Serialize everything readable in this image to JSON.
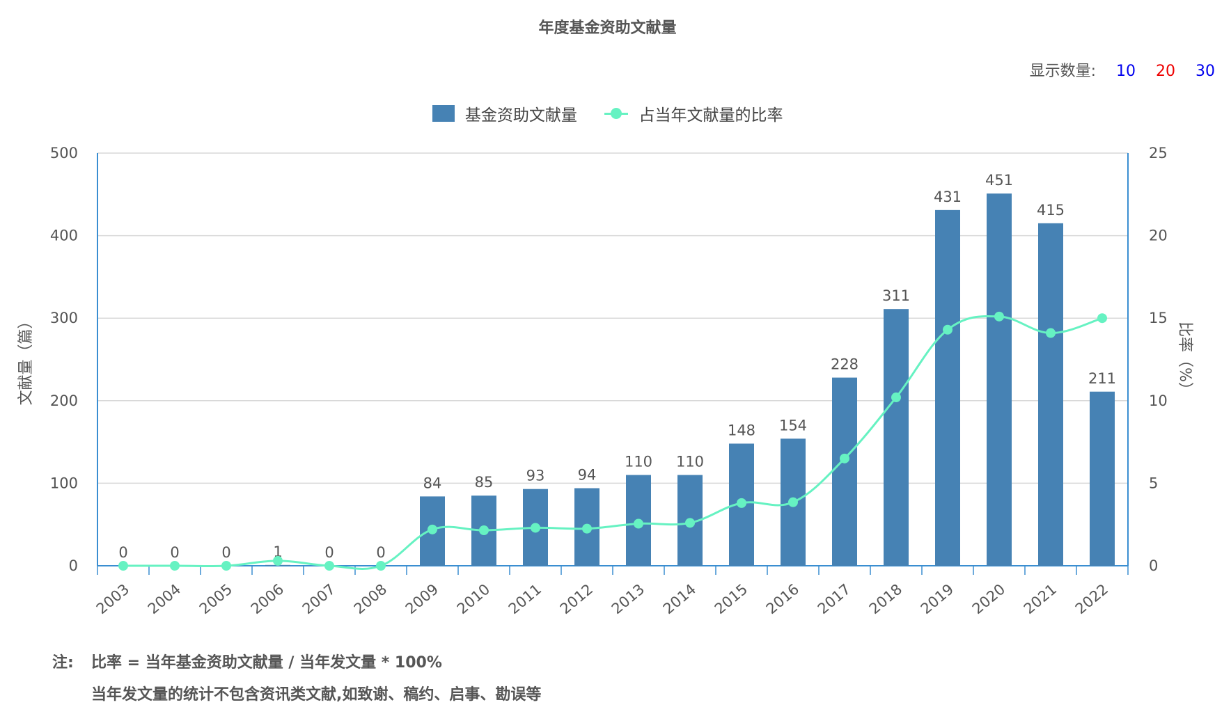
{
  "title": "年度基金资助文献量",
  "display_count": {
    "label": "显示数量:",
    "options": [
      {
        "label": "10",
        "color": "#0000ee"
      },
      {
        "label": "20",
        "color": "#ee0000"
      },
      {
        "label": "30",
        "color": "#0000ee"
      }
    ]
  },
  "legend": {
    "bar_label": "基金资助文献量",
    "line_label": "占当年文献量的比率"
  },
  "colors": {
    "bar": "#4682b4",
    "line": "#66f2c2",
    "grid": "#d9d9d9",
    "axis": "#3a8ed1",
    "text": "#555555"
  },
  "chart_data": {
    "type": "bar",
    "title": "年度基金资助文献量",
    "categories": [
      "2003",
      "2004",
      "2005",
      "2006",
      "2007",
      "2008",
      "2009",
      "2010",
      "2011",
      "2012",
      "2013",
      "2014",
      "2015",
      "2016",
      "2017",
      "2018",
      "2019",
      "2020",
      "2021",
      "2022"
    ],
    "series": [
      {
        "name": "基金资助文献量",
        "type": "bar",
        "axis": "left",
        "values": [
          0,
          0,
          0,
          1,
          0,
          0,
          84,
          85,
          93,
          94,
          110,
          110,
          148,
          154,
          228,
          311,
          431,
          451,
          415,
          211
        ]
      },
      {
        "name": "占当年文献量的比率",
        "type": "line",
        "axis": "right",
        "values": [
          0,
          0,
          0,
          0.3,
          0,
          0,
          2.2,
          2.15,
          2.3,
          2.25,
          2.55,
          2.6,
          3.8,
          3.85,
          6.5,
          10.2,
          14.3,
          15.1,
          14.1,
          15.0
        ]
      }
    ],
    "ylabel_left": "文献量（篇）",
    "ylabel_right": "比率（%）",
    "ylim_left": [
      0,
      500
    ],
    "ylim_right": [
      0,
      25
    ],
    "yticks_left": [
      "0",
      "100",
      "200",
      "300",
      "400",
      "500"
    ],
    "yticks_right": [
      "0",
      "5",
      "10",
      "15",
      "20",
      "25"
    ],
    "grid": true,
    "legend_position": "top-center"
  },
  "notes": {
    "prefix": "注:",
    "line1": "比率 = 当年基金资助文献量 / 当年发文量 * 100%",
    "line2": "当年发文量的统计不包含资讯类文献,如致谢、稿约、启事、勘误等"
  }
}
